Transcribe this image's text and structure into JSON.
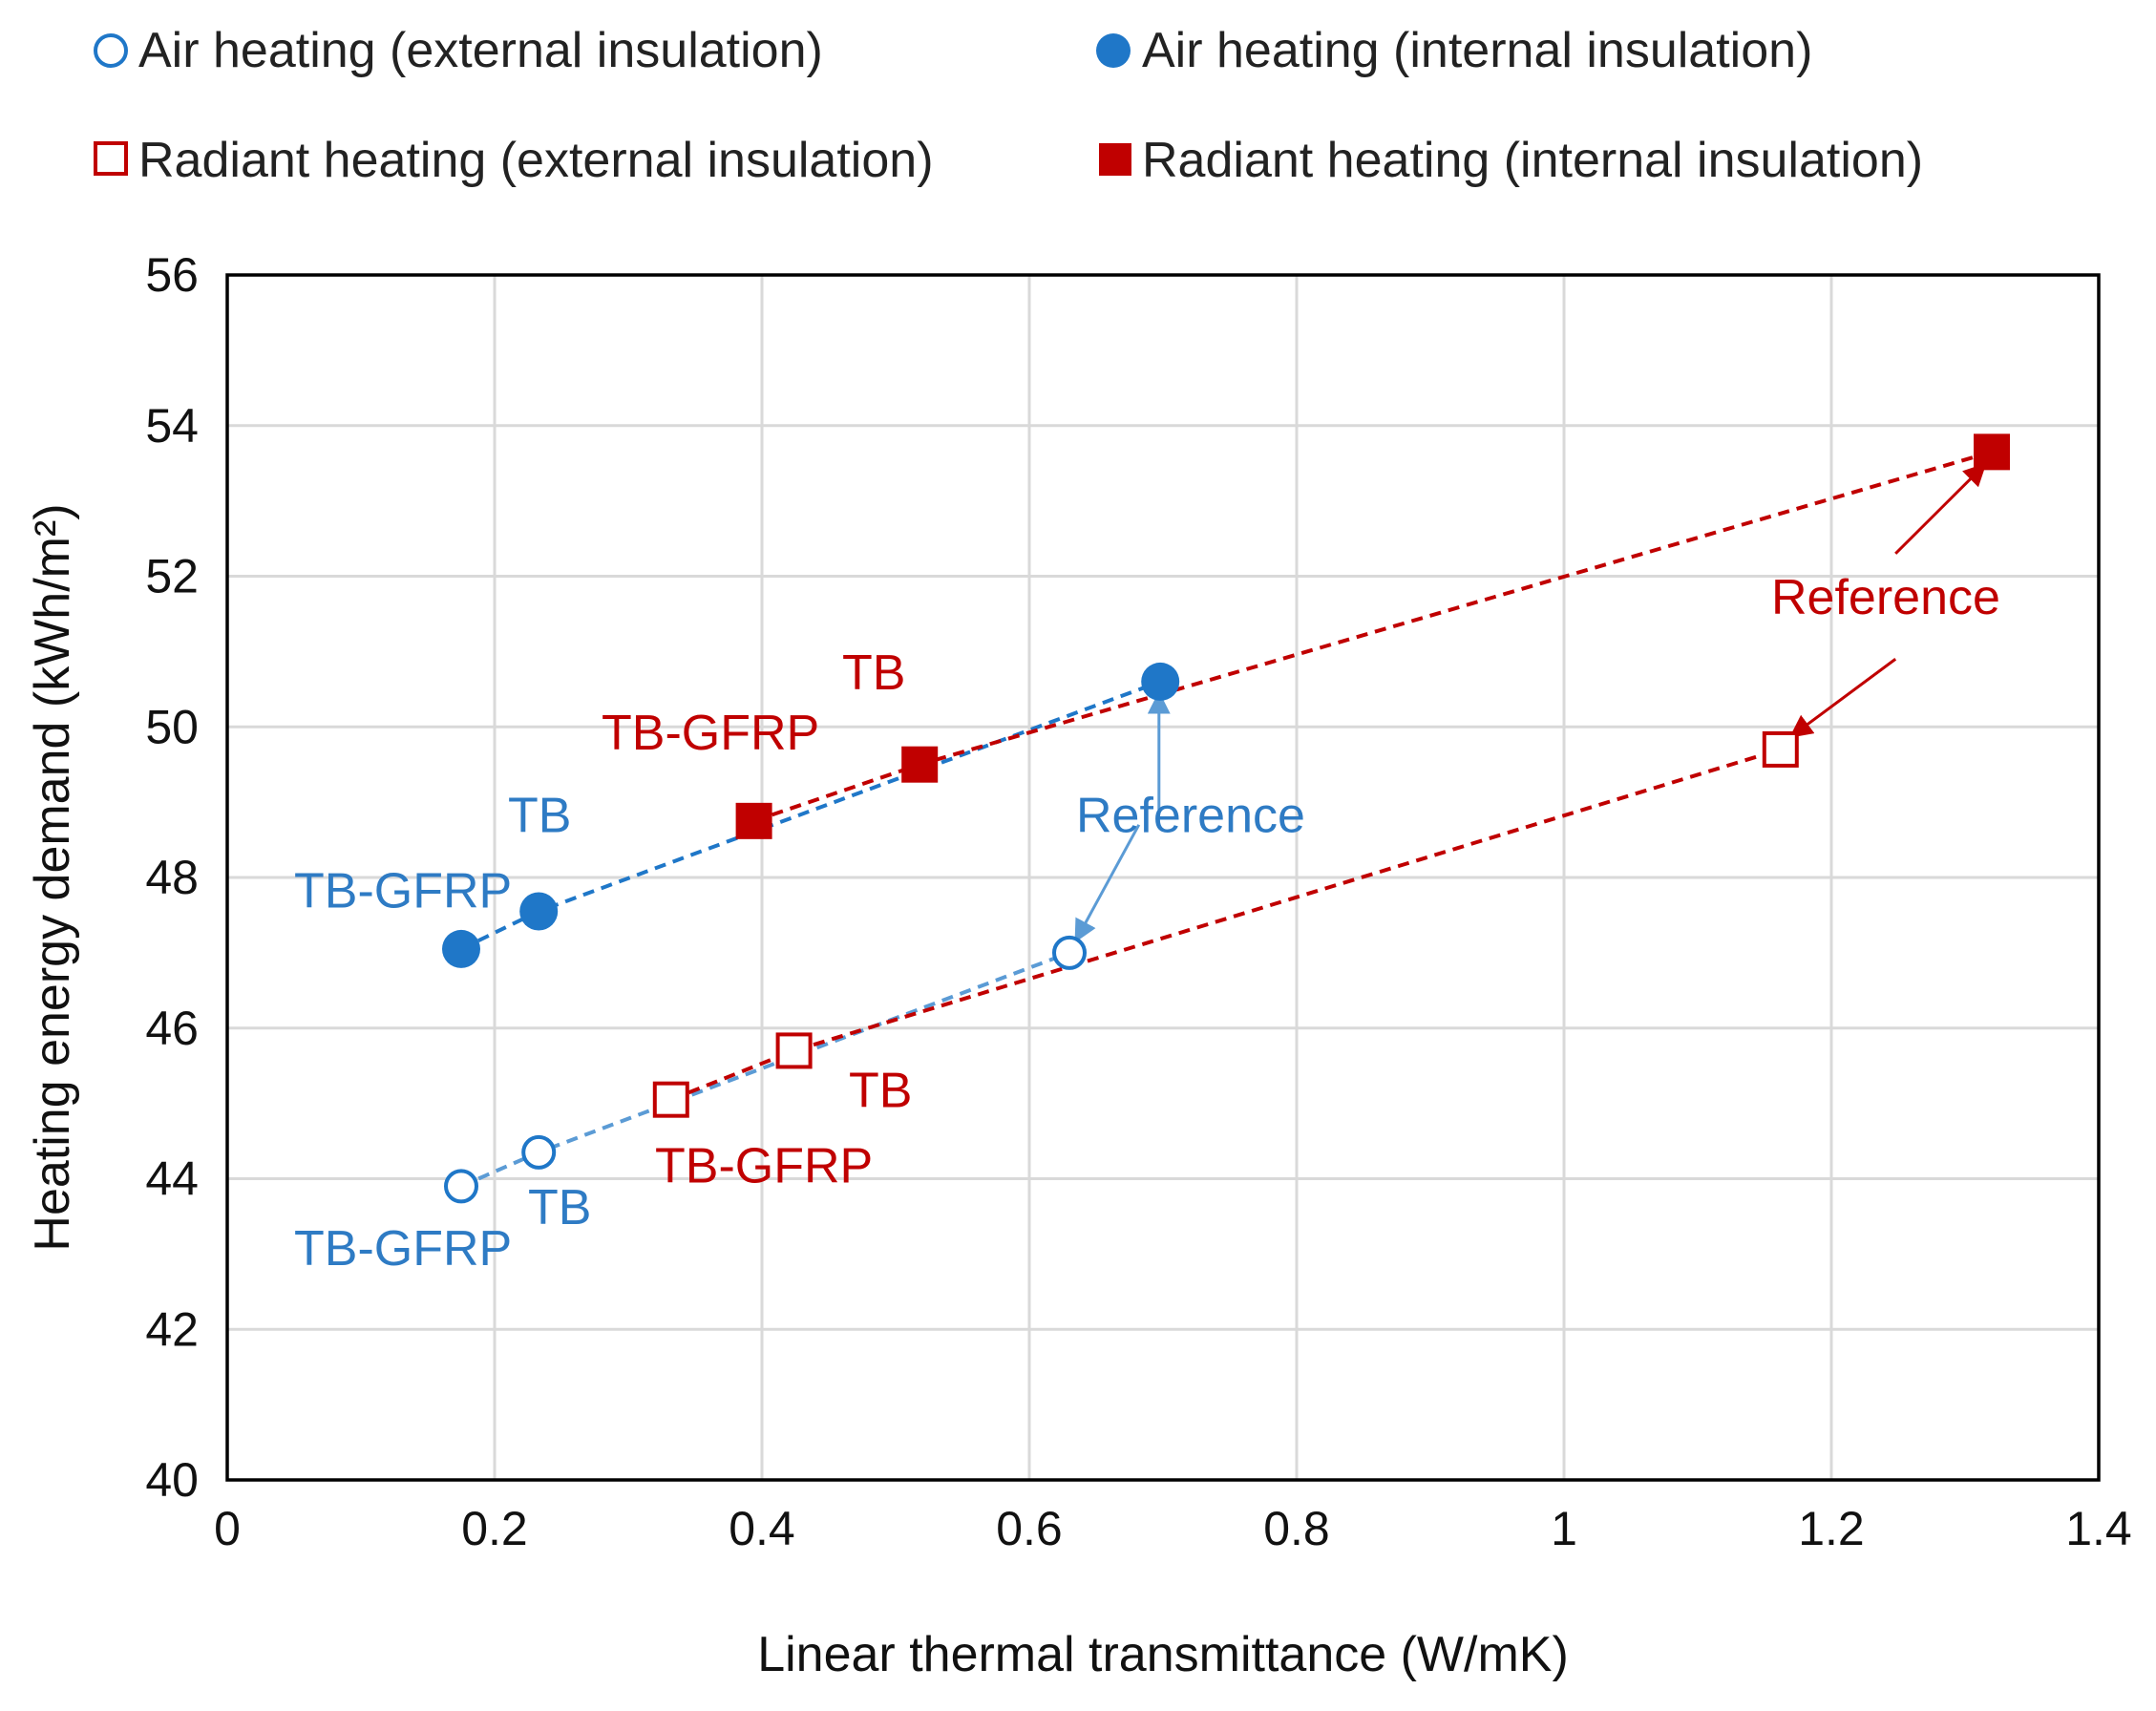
{
  "chart_data": {
    "type": "scatter",
    "title": "",
    "xlabel": "Linear thermal transmittance (W/mK)",
    "ylabel": "Heating energy demand (kWh/m²)",
    "xlim": [
      0,
      1.4
    ],
    "ylim": [
      40,
      56
    ],
    "x_ticks": [
      "0",
      "0.2",
      "0.4",
      "0.6",
      "0.8",
      "1",
      "1.2",
      "1.4"
    ],
    "y_ticks": [
      "40",
      "42",
      "44",
      "46",
      "48",
      "50",
      "52",
      "54",
      "56"
    ],
    "grid": true,
    "legend_position": "top",
    "series": [
      {
        "name": "Air heating (external insulation)",
        "marker": "open-circle",
        "color": "#1F77C8",
        "line_color": "#5B9BD5",
        "points": [
          {
            "label": "TB-GFRP",
            "x": 0.175,
            "y": 43.9
          },
          {
            "label": "TB",
            "x": 0.233,
            "y": 44.35
          },
          {
            "label": "Reference",
            "x": 0.63,
            "y": 47.0
          }
        ]
      },
      {
        "name": "Air heating (internal insulation)",
        "marker": "filled-circle",
        "color": "#1F77C8",
        "line_color": "#1F77C8",
        "points": [
          {
            "label": "TB-GFRP",
            "x": 0.175,
            "y": 47.05
          },
          {
            "label": "TB",
            "x": 0.233,
            "y": 47.55
          },
          {
            "label": "Reference",
            "x": 0.698,
            "y": 50.6
          }
        ]
      },
      {
        "name": "Radiant heating (external insulation)",
        "marker": "open-square",
        "color": "#C00000",
        "line_color": "#C00000",
        "points": [
          {
            "label": "TB-GFRP",
            "x": 0.332,
            "y": 45.05
          },
          {
            "label": "TB",
            "x": 0.424,
            "y": 45.7
          },
          {
            "label": "Reference",
            "x": 1.162,
            "y": 49.7
          }
        ]
      },
      {
        "name": "Radiant heating (internal insulation)",
        "marker": "filled-square",
        "color": "#C00000",
        "line_color": "#C00000",
        "points": [
          {
            "label": "TB-GFRP",
            "x": 0.394,
            "y": 48.75
          },
          {
            "label": "TB",
            "x": 0.518,
            "y": 49.5
          },
          {
            "label": "Reference",
            "x": 1.32,
            "y": 53.65
          }
        ]
      }
    ],
    "annotations": [
      {
        "text": "TB-GFRP",
        "color": "#2E7BC4",
        "x": 0.05,
        "y": 47.6
      },
      {
        "text": "TB",
        "color": "#2E7BC4",
        "x": 0.21,
        "y": 48.6
      },
      {
        "text": "TB",
        "color": "#C00000",
        "x": 0.46,
        "y": 50.5
      },
      {
        "text": "TB-GFRP",
        "color": "#C00000",
        "x": 0.28,
        "y": 49.7
      },
      {
        "text": "Reference",
        "color": "#2E7BC4",
        "x": 0.635,
        "y": 48.6
      },
      {
        "text": "Reference",
        "color": "#C00000",
        "x": 1.155,
        "y": 51.5
      },
      {
        "text": "TB",
        "color": "#C00000",
        "x": 0.465,
        "y": 44.95
      },
      {
        "text": "TB-GFRP",
        "color": "#C00000",
        "x": 0.32,
        "y": 43.95
      },
      {
        "text": "TB",
        "color": "#2E7BC4",
        "x": 0.225,
        "y": 43.4
      },
      {
        "text": "TB-GFRP",
        "color": "#2E7BC4",
        "x": 0.05,
        "y": 42.85
      }
    ],
    "arrows": [
      {
        "color": "#5B9BD5",
        "from": [
          0.682,
          48.7
        ],
        "to": [
          0.636,
          47.2
        ]
      },
      {
        "color": "#5B9BD5",
        "from": [
          0.697,
          48.9
        ],
        "to": [
          0.697,
          50.4
        ]
      },
      {
        "color": "#C00000",
        "from": [
          1.248,
          50.9
        ],
        "to": [
          1.172,
          49.9
        ]
      },
      {
        "color": "#C00000",
        "from": [
          1.248,
          52.3
        ],
        "to": [
          1.313,
          53.45
        ]
      }
    ]
  }
}
